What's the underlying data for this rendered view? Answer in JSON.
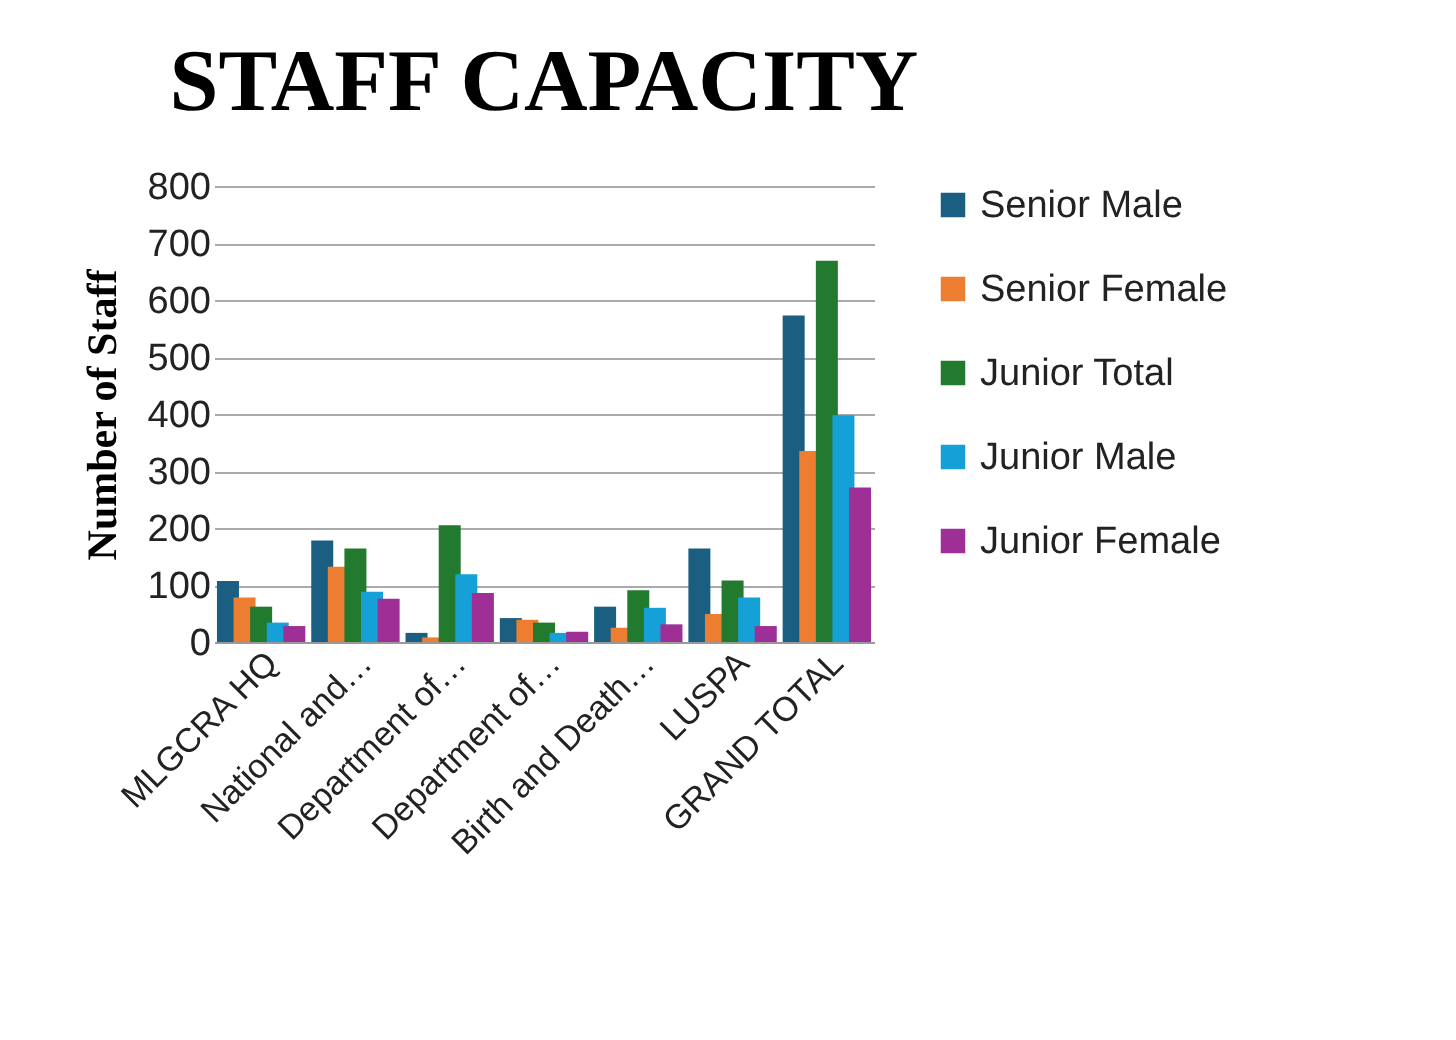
{
  "chart_data": {
    "type": "bar",
    "title": "STAFF CAPACITY",
    "ylabel": "Number of Staff",
    "categories": [
      "MLGCRA HQ",
      "National and…",
      "Department of…",
      "Department of…",
      "Birth and Death…",
      "LUSPA",
      "GRAND TOTAL"
    ],
    "series": [
      {
        "name": "Senior Male",
        "color": "#1a5f82",
        "values": [
          107,
          178,
          16,
          42,
          62,
          164,
          573
        ]
      },
      {
        "name": "Senior Female",
        "color": "#ed7d31",
        "values": [
          78,
          132,
          8,
          39,
          25,
          49,
          335
        ]
      },
      {
        "name": "Junior Total",
        "color": "#217a2e",
        "values": [
          62,
          164,
          205,
          34,
          91,
          108,
          669
        ]
      },
      {
        "name": "Junior Male",
        "color": "#15a0d8",
        "values": [
          34,
          88,
          119,
          16,
          60,
          78,
          398
        ]
      },
      {
        "name": "Junior Female",
        "color": "#9e2f96",
        "values": [
          28,
          76,
          86,
          18,
          31,
          28,
          271
        ]
      }
    ],
    "ylim": [
      0,
      800
    ],
    "yticks": [
      0,
      100,
      200,
      300,
      400,
      500,
      600,
      700,
      800
    ],
    "grid": "y",
    "legend": "right"
  }
}
